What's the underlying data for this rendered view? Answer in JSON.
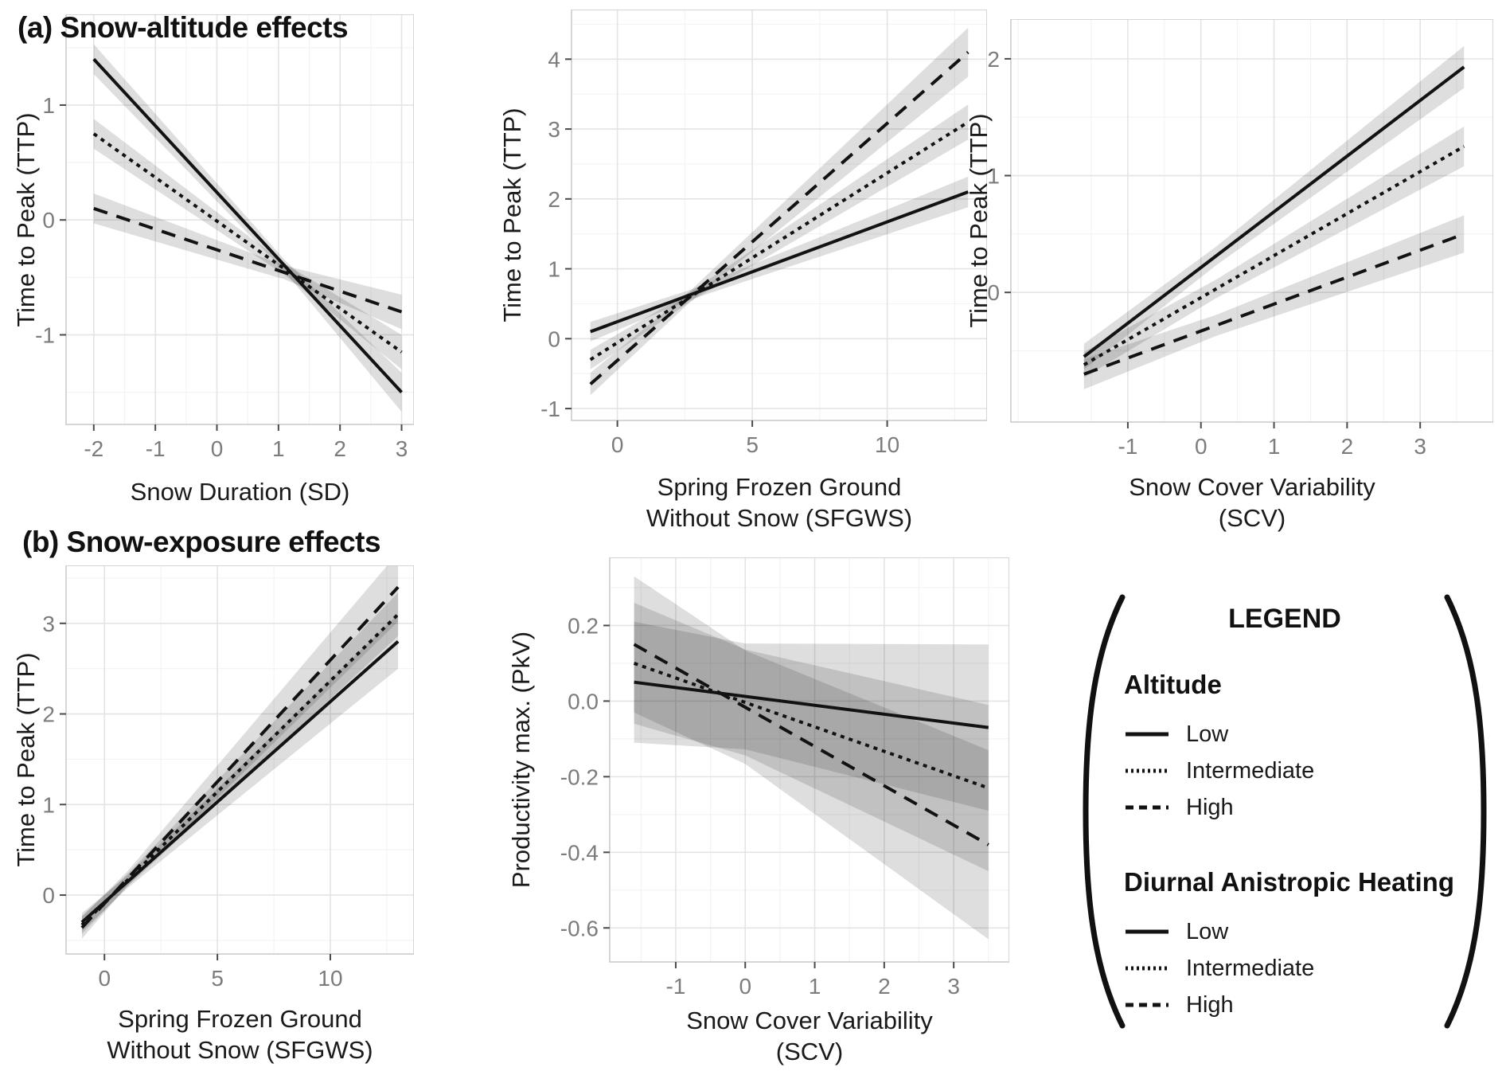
{
  "panel_titles": {
    "a": "(a) Snow-altitude effects",
    "b": "(b) Snow-exposure effects"
  },
  "legend": {
    "title": "LEGEND",
    "groups": [
      {
        "title": "Altitude",
        "items": [
          {
            "label": "Low",
            "style": "solid"
          },
          {
            "label": "Intermediate",
            "style": "dotted"
          },
          {
            "label": "High",
            "style": "dashed"
          }
        ]
      },
      {
        "title": "Diurnal Anistropic Heating",
        "items": [
          {
            "label": "Low",
            "style": "solid"
          },
          {
            "label": "Intermediate",
            "style": "dotted"
          },
          {
            "label": "High",
            "style": "dashed"
          }
        ]
      }
    ]
  },
  "styles": {
    "line_color": "#121212",
    "band_color": "rgba(0,0,0,0.13)",
    "grid_major": "#e4e4e4",
    "grid_minor": "#f3f3f3",
    "panel_border": "#c9c9c9",
    "tick_mark_color": "#4a4a4a",
    "tick_label_color": "#7c7c7c",
    "background": "#ffffff"
  },
  "chart_data": [
    {
      "type": "line",
      "panel": "a",
      "xlabel": "Snow Duration (SD)",
      "ylabel": "Time to Peak (TTP)",
      "xlim": [
        -2.45,
        3.2
      ],
      "ylim": [
        -1.78,
        1.79
      ],
      "xticks": [
        -2,
        -1,
        0,
        1,
        2,
        3
      ],
      "yticks": [
        1,
        0,
        -1
      ],
      "grid": true,
      "series": [
        {
          "name": "Altitude Low",
          "style": "solid",
          "x": [
            -2,
            3
          ],
          "y": [
            1.4,
            -1.5
          ],
          "band": [
            [
              -2,
              0.13
            ],
            [
              1.1,
              0.05
            ],
            [
              3,
              0.17
            ]
          ]
        },
        {
          "name": "Altitude Intermediate",
          "style": "dotted",
          "x": [
            -2,
            3
          ],
          "y": [
            0.75,
            -1.15
          ],
          "band": [
            [
              -2,
              0.13
            ],
            [
              1.1,
              0.05
            ],
            [
              3,
              0.15
            ]
          ]
        },
        {
          "name": "Altitude High",
          "style": "dashed",
          "x": [
            -2,
            3
          ],
          "y": [
            0.1,
            -0.8
          ],
          "band": [
            [
              -2,
              0.13
            ],
            [
              1.1,
              0.06
            ],
            [
              3,
              0.15
            ]
          ]
        }
      ]
    },
    {
      "type": "line",
      "panel": "a",
      "xlabel": "Spring Frozen Ground\nWithout Snow (SFGWS)",
      "ylabel": "Time to Peak (TTP)",
      "xlim": [
        -1.7,
        13.7
      ],
      "ylim": [
        -1.17,
        4.71
      ],
      "xticks": [
        0,
        5,
        10
      ],
      "yticks": [
        4,
        3,
        2,
        1,
        0,
        -1
      ],
      "grid": true,
      "series": [
        {
          "name": "Altitude Low",
          "style": "solid",
          "x": [
            -1,
            13
          ],
          "y": [
            0.1,
            2.1
          ],
          "band": [
            [
              -1,
              0.14
            ],
            [
              2.7,
              0.07
            ],
            [
              13,
              0.22
            ]
          ]
        },
        {
          "name": "Altitude Intermediate",
          "style": "dotted",
          "x": [
            -1,
            13
          ],
          "y": [
            -0.3,
            3.1
          ],
          "band": [
            [
              -1,
              0.14
            ],
            [
              2.7,
              0.07
            ],
            [
              13,
              0.25
            ]
          ]
        },
        {
          "name": "Altitude High",
          "style": "dashed",
          "x": [
            -1,
            13
          ],
          "y": [
            -0.65,
            4.1
          ],
          "band": [
            [
              -1,
              0.16
            ],
            [
              2.7,
              0.08
            ],
            [
              13,
              0.35
            ]
          ]
        }
      ]
    },
    {
      "type": "line",
      "panel": "a",
      "xlabel": "Snow Cover Variability\n(SCV)",
      "ylabel": "Time to Peak (TTP)",
      "xlim": [
        -2.6,
        4.0
      ],
      "ylim": [
        -1.11,
        2.34
      ],
      "xticks": [
        -1,
        0,
        1,
        2,
        3
      ],
      "yticks": [
        2,
        1,
        0
      ],
      "grid": true,
      "series": [
        {
          "name": "Altitude Low",
          "style": "solid",
          "x": [
            -1.6,
            3.6
          ],
          "y": [
            -0.55,
            1.93
          ],
          "band": [
            [
              -1.6,
              0.11
            ],
            [
              0.2,
              0.08
            ],
            [
              3.6,
              0.18
            ]
          ]
        },
        {
          "name": "Altitude Intermediate",
          "style": "dotted",
          "x": [
            -1.6,
            3.6
          ],
          "y": [
            -0.62,
            1.25
          ],
          "band": [
            [
              -1.6,
              0.11
            ],
            [
              0.2,
              0.08
            ],
            [
              3.6,
              0.17
            ]
          ]
        },
        {
          "name": "Altitude High",
          "style": "dashed",
          "x": [
            -1.6,
            3.6
          ],
          "y": [
            -0.7,
            0.5
          ],
          "band": [
            [
              -1.6,
              0.13
            ],
            [
              0.2,
              0.09
            ],
            [
              3.6,
              0.16
            ]
          ]
        }
      ]
    },
    {
      "type": "line",
      "panel": "b",
      "xlabel": "Spring Frozen Ground\nWithout Snow (SFGWS)",
      "ylabel": "Time to Peak (TTP)",
      "xlim": [
        -1.7,
        13.7
      ],
      "ylim": [
        -0.65,
        3.64
      ],
      "xticks": [
        0,
        5,
        10
      ],
      "yticks": [
        3,
        2,
        1,
        0
      ],
      "grid": true,
      "series": [
        {
          "name": "Diurnal Anistropic Heating High",
          "style": "dashed",
          "x": [
            -1,
            13
          ],
          "y": [
            -0.36,
            3.4
          ],
          "band": [
            [
              -1,
              0.12
            ],
            [
              1,
              0.08
            ],
            [
              13,
              0.38
            ]
          ]
        },
        {
          "name": "Diurnal Anistropic Heating Intermediate",
          "style": "dotted",
          "x": [
            -1,
            13
          ],
          "y": [
            -0.33,
            3.1
          ],
          "band": [
            [
              -1,
              0.1
            ],
            [
              1,
              0.07
            ],
            [
              13,
              0.24
            ]
          ]
        },
        {
          "name": "Diurnal Anistropic Heating Low",
          "style": "solid",
          "x": [
            -1,
            13
          ],
          "y": [
            -0.3,
            2.8
          ],
          "band": [
            [
              -1,
              0.1
            ],
            [
              1,
              0.07
            ],
            [
              13,
              0.3
            ]
          ]
        }
      ]
    },
    {
      "type": "line",
      "panel": "b",
      "xlabel": "Snow Cover Variability\n(SCV)",
      "ylabel": "Productivity max. (PkV)",
      "xlim": [
        -1.95,
        3.8
      ],
      "ylim": [
        -0.69,
        0.38
      ],
      "xticks": [
        -1,
        0,
        1,
        2,
        3
      ],
      "yticks": [
        0.2,
        0.0,
        -0.2,
        -0.4,
        -0.6
      ],
      "yticklabels": [
        "0.2",
        "0.0",
        "-0.2",
        "-0.4",
        "-0.6"
      ],
      "grid": true,
      "series": [
        {
          "name": "Diurnal Anistropic Heating High",
          "style": "dashed",
          "x": [
            -1.6,
            3.5
          ],
          "y": [
            0.15,
            -0.38
          ],
          "band": [
            [
              -1.6,
              0.18
            ],
            [
              0,
              0.15
            ],
            [
              3.5,
              0.25
            ]
          ]
        },
        {
          "name": "Diurnal Anistropic Heating Intermediate",
          "style": "dotted",
          "x": [
            -1.6,
            3.5
          ],
          "y": [
            0.1,
            -0.23
          ],
          "band": [
            [
              -1.6,
              0.16
            ],
            [
              0,
              0.14
            ],
            [
              3.5,
              0.22
            ]
          ]
        },
        {
          "name": "Diurnal Anistropic Heating Low",
          "style": "solid",
          "x": [
            -1.6,
            3.5
          ],
          "y": [
            0.05,
            -0.07
          ],
          "band": [
            [
              -1.6,
              0.16
            ],
            [
              0,
              0.14
            ],
            [
              3.5,
              0.22
            ]
          ]
        }
      ]
    }
  ]
}
